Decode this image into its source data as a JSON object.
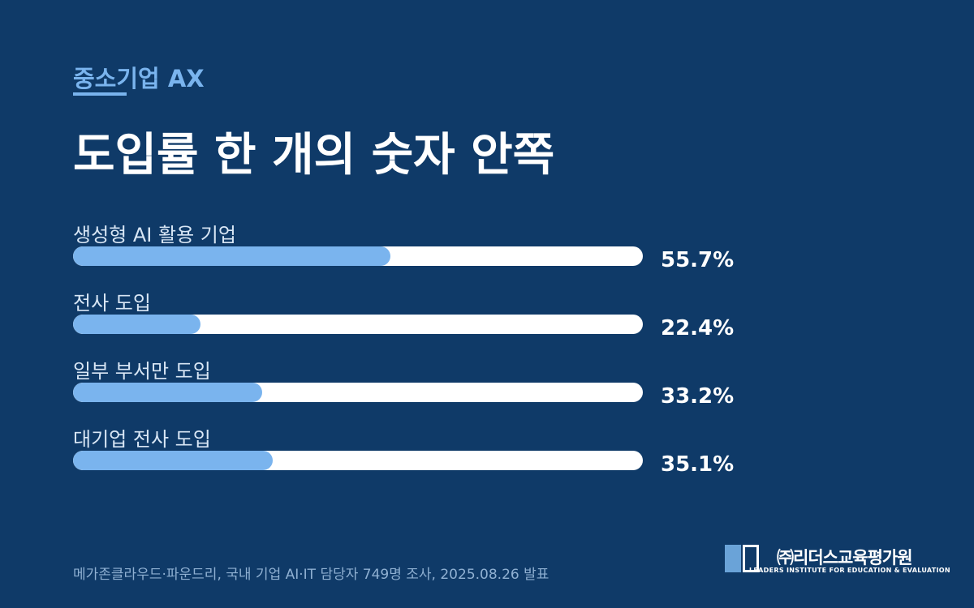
{
  "header": {
    "kicker": "중소기업 AX",
    "title": "도입률 한 개의 숫자 안쪽"
  },
  "chart_data": {
    "type": "bar",
    "orientation": "horizontal",
    "categories": [
      "생성형 AI 활용 기업",
      "전사 도입",
      "일부 부서만 도입",
      "대기업 전사 도입"
    ],
    "values": [
      55.7,
      22.4,
      33.2,
      35.1
    ],
    "value_labels": [
      "55.7%",
      "22.4%",
      "33.2%",
      "35.1%"
    ],
    "xlim": [
      0,
      100
    ],
    "unit": "%",
    "grid": false,
    "colors": {
      "fill": "#7ab4ee",
      "track": "#ffffff"
    }
  },
  "footer": {
    "source": "메가존클라우드·파운드리, 국내 기업 AI·IT 담당자 749명 조사, 2025.08.26 발표",
    "logo_text": "㈜리더스교육평가원",
    "logo_subtitle": "LEADERS INSTITUTE FOR EDUCATION & EVALUATION"
  },
  "colors": {
    "background": "#0f3a68",
    "accent": "#7ab4ee"
  }
}
